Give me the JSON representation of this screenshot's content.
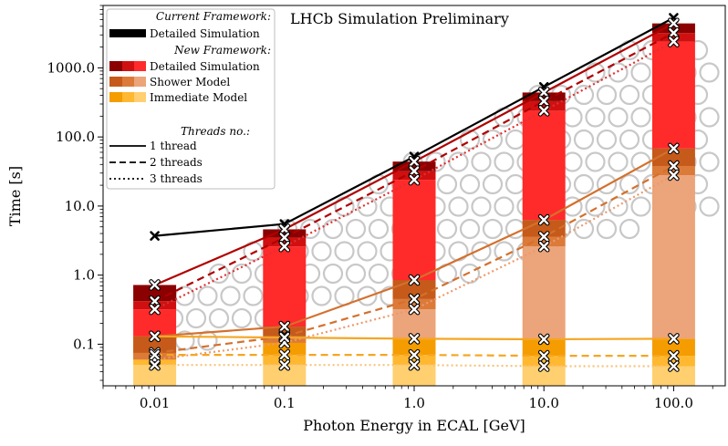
{
  "chart_data": {
    "type": "bar",
    "title": "LHCb Simulation Preliminary",
    "xlabel": "Photon Energy in ECAL [GeV]",
    "ylabel": "Time [s]",
    "x_scale": "log",
    "y_scale": "log",
    "ylim": [
      0.025,
      8000
    ],
    "xlim": [
      0.004,
      250
    ],
    "x_ticks": [
      0.01,
      0.1,
      1.0,
      10.0,
      100.0
    ],
    "x_tick_labels": [
      "0.01",
      "0.1",
      "1.0",
      "10.0",
      "100.0"
    ],
    "y_ticks": [
      0.1,
      1.0,
      10.0,
      100.0,
      1000.0
    ],
    "y_tick_labels": [
      "0.1",
      "1.0",
      "10.0",
      "100.0",
      "1000.0"
    ],
    "grid": false,
    "legend_position": "top-left",
    "energies": [
      0.01,
      0.1,
      1.0,
      10.0,
      100.0
    ],
    "colors": {
      "current_detailed": "#000000",
      "detailed": [
        "#8b0000",
        "#d01010",
        "#ff2a2a"
      ],
      "shower": [
        "#c55a1a",
        "#dc7a3a",
        "#eca47a"
      ],
      "immediate": [
        "#f59c00",
        "#ffb830",
        "#ffcf70"
      ],
      "background_circles": "#c8c8c8"
    },
    "legend": {
      "current_header": "Current Framework:",
      "current_detailed": "Detailed Simulation",
      "new_header": "New Framework:",
      "detailed": "Detailed Simulation",
      "shower": "Shower Model",
      "immediate": "Immediate Model",
      "threads_header": "Threads no.:",
      "thread_1": "1 thread",
      "thread_2": "2 threads",
      "thread_3": "3 threads"
    },
    "series": [
      {
        "model": "current_detailed",
        "threads": 1,
        "values": [
          3.7,
          5.5,
          52,
          530,
          5300
        ]
      },
      {
        "model": "detailed",
        "threads": 1,
        "values": [
          0.72,
          4.6,
          44,
          440,
          4400
        ]
      },
      {
        "model": "detailed",
        "threads": 2,
        "values": [
          0.42,
          3.5,
          32,
          330,
          3200
        ]
      },
      {
        "model": "detailed",
        "threads": 3,
        "values": [
          0.32,
          2.6,
          24,
          240,
          2400
        ]
      },
      {
        "model": "shower",
        "threads": 1,
        "values": [
          0.13,
          0.18,
          0.85,
          6.3,
          68
        ]
      },
      {
        "model": "shower",
        "threads": 2,
        "values": [
          0.075,
          0.13,
          0.45,
          3.6,
          38
        ]
      },
      {
        "model": "shower",
        "threads": 3,
        "values": [
          0.06,
          0.105,
          0.32,
          2.6,
          28
        ]
      },
      {
        "model": "immediate",
        "threads": 1,
        "values": [
          0.13,
          0.125,
          0.12,
          0.118,
          0.12
        ]
      },
      {
        "model": "immediate",
        "threads": 2,
        "values": [
          0.07,
          0.07,
          0.07,
          0.068,
          0.068
        ]
      },
      {
        "model": "immediate",
        "threads": 3,
        "values": [
          0.05,
          0.05,
          0.05,
          0.048,
          0.048
        ]
      }
    ]
  }
}
